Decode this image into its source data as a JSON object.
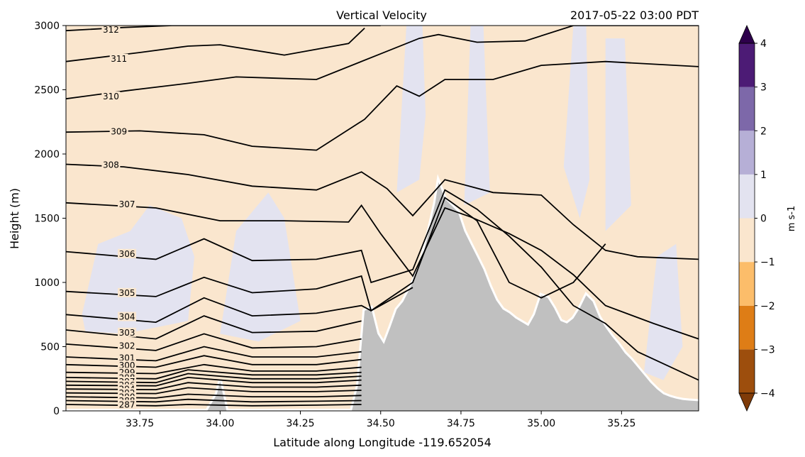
{
  "chart_data": {
    "type": "contour",
    "title_left": "Vertical Velocity",
    "title_right": "2017-05-22 03:00 PDT",
    "xlabel": "Latitude along Longitude -119.652054",
    "ylabel": "Height (m)",
    "xlim": [
      33.52,
      35.49
    ],
    "ylim": [
      0,
      3000
    ],
    "xticks": [
      33.75,
      34.0,
      34.25,
      34.5,
      34.75,
      35.0,
      35.25
    ],
    "xtick_labels": [
      "33.75",
      "34.00",
      "34.25",
      "34.50",
      "34.75",
      "35.00",
      "35.25"
    ],
    "yticks": [
      0,
      500,
      1000,
      1500,
      2000,
      2500,
      3000
    ],
    "ytick_labels": [
      "0",
      "500",
      "1000",
      "1500",
      "2000",
      "2500",
      "3000"
    ],
    "colorbar": {
      "label": "m s-1",
      "levels": [
        -4,
        -3,
        -2,
        -1,
        0,
        1,
        2,
        3,
        4
      ],
      "tick_labels": [
        "−4",
        "−3",
        "−2",
        "−1",
        "0",
        "1",
        "2",
        "3",
        "4"
      ],
      "colors": [
        "#9d4e0d",
        "#de7d16",
        "#fcbd6a",
        "#fae6ce",
        "#e3e3f0",
        "#b6afd6",
        "#7d68a9",
        "#4c1b75"
      ],
      "extend_low_color": "#7f3b08",
      "extend_high_color": "#2d004b"
    },
    "terrain": {
      "color": "#c0c0c0",
      "lat": [
        33.52,
        33.96,
        33.99,
        34.0,
        34.02,
        34.41,
        34.43,
        34.45,
        34.47,
        34.49,
        34.51,
        34.53,
        34.55,
        34.57,
        34.59,
        34.61,
        34.63,
        34.65,
        34.67,
        34.68,
        34.7,
        34.72,
        34.74,
        34.76,
        34.78,
        34.8,
        34.82,
        34.84,
        34.86,
        34.88,
        34.9,
        34.92,
        34.94,
        34.96,
        34.98,
        35.0,
        35.02,
        35.04,
        35.06,
        35.08,
        35.1,
        35.12,
        35.14,
        35.16,
        35.18,
        35.2,
        35.22,
        35.24,
        35.26,
        35.28,
        35.3,
        35.32,
        35.34,
        35.36,
        35.38,
        35.4,
        35.42,
        35.44,
        35.46,
        35.49
      ],
      "height": [
        0,
        0,
        130,
        230,
        0,
        0,
        200,
        780,
        800,
        600,
        520,
        650,
        790,
        850,
        950,
        1050,
        1200,
        1400,
        1620,
        1780,
        1650,
        1600,
        1550,
        1400,
        1300,
        1200,
        1100,
        970,
        860,
        790,
        760,
        720,
        690,
        660,
        750,
        900,
        880,
        800,
        700,
        680,
        720,
        800,
        900,
        850,
        730,
        650,
        580,
        520,
        450,
        400,
        340,
        280,
        220,
        170,
        130,
        110,
        95,
        85,
        80,
        75
      ]
    },
    "isentropes": {
      "units": "K",
      "color": "#000000",
      "labels_printed": [
        "312",
        "311",
        "310",
        "309",
        "308",
        "307",
        "306",
        "305",
        "304",
        "303",
        "302",
        "301",
        "300",
        "299",
        "298",
        "297",
        "296",
        "294",
        "292",
        "290",
        "288",
        "287"
      ],
      "lines": [
        {
          "theta": "312",
          "lat": [
            33.52,
            33.7,
            33.85,
            34.0,
            34.2,
            34.4,
            34.5
          ],
          "height": [
            2960,
            2985,
            3000,
            3000,
            3000,
            3000,
            3000
          ]
        },
        {
          "theta": "311",
          "lat": [
            33.52,
            33.75,
            33.9,
            34.0,
            34.2,
            34.4,
            34.45
          ],
          "height": [
            2720,
            2790,
            2840,
            2850,
            2770,
            2860,
            2980
          ]
        },
        {
          "theta": "310",
          "lat": [
            33.52,
            33.7,
            33.9,
            34.05,
            34.3,
            34.5,
            34.62,
            34.68,
            34.8,
            34.95,
            35.1,
            35.3,
            35.49
          ],
          "height": [
            2430,
            2490,
            2550,
            2600,
            2580,
            2780,
            2900,
            2930,
            2870,
            2880,
            3000,
            3000,
            3000
          ]
        },
        {
          "theta": "309",
          "lat": [
            33.52,
            33.75,
            33.95,
            34.1,
            34.3,
            34.45,
            34.55,
            34.62,
            34.7,
            34.85,
            35.0,
            35.2,
            35.49
          ],
          "height": [
            2170,
            2180,
            2150,
            2060,
            2030,
            2270,
            2530,
            2450,
            2580,
            2580,
            2690,
            2720,
            2680
          ]
        },
        {
          "theta": "308",
          "lat": [
            33.52,
            33.7,
            33.9,
            34.1,
            34.3,
            34.44,
            34.52,
            34.6,
            34.7,
            34.85,
            35.0,
            35.1,
            35.2,
            35.3,
            35.49
          ],
          "height": [
            1920,
            1900,
            1840,
            1750,
            1720,
            1860,
            1730,
            1520,
            1800,
            1700,
            1680,
            1450,
            1250,
            1200,
            1180
          ]
        },
        {
          "theta": "307",
          "lat": [
            33.52,
            33.8,
            34.0,
            34.2,
            34.4,
            34.44,
            34.5,
            34.6,
            34.7,
            34.78,
            34.9,
            35.0,
            35.1,
            35.2,
            35.35,
            35.49
          ],
          "height": [
            1620,
            1580,
            1480,
            1480,
            1470,
            1600,
            1380,
            1050,
            1580,
            1510,
            1380,
            1250,
            1060,
            820,
            680,
            560
          ]
        },
        {
          "theta": "306",
          "lat": [
            33.52,
            33.8,
            33.95,
            34.1,
            34.3,
            34.44,
            34.47,
            34.6,
            34.7,
            34.8,
            34.9,
            35.0,
            35.1,
            35.2,
            35.3,
            35.49
          ],
          "height": [
            1240,
            1180,
            1340,
            1170,
            1180,
            1250,
            1000,
            1100,
            1720,
            1570,
            1360,
            1120,
            820,
            680,
            460,
            240
          ]
        },
        {
          "theta": "305",
          "lat": [
            33.52,
            33.8,
            33.95,
            34.1,
            34.3,
            34.44,
            34.47,
            34.6,
            34.7,
            34.8,
            34.9,
            35.0,
            35.1,
            35.2
          ],
          "height": [
            930,
            890,
            1040,
            920,
            950,
            1050,
            780,
            1000,
            1660,
            1480,
            1000,
            880,
            1000,
            1300
          ]
        },
        {
          "theta": "304",
          "lat": [
            33.52,
            33.8,
            33.95,
            34.1,
            34.3,
            34.44,
            34.47,
            34.6
          ],
          "height": [
            750,
            690,
            880,
            740,
            760,
            820,
            780,
            960
          ]
        },
        {
          "theta": "303",
          "lat": [
            33.52,
            33.8,
            33.95,
            34.1,
            34.3,
            34.44
          ],
          "height": [
            630,
            560,
            740,
            610,
            620,
            700
          ]
        },
        {
          "theta": "302",
          "lat": [
            33.52,
            33.8,
            33.95,
            34.1,
            34.3,
            34.44
          ],
          "height": [
            520,
            470,
            600,
            490,
            500,
            560
          ]
        },
        {
          "theta": "301",
          "lat": [
            33.52,
            33.8,
            33.95,
            34.1,
            34.3,
            34.44
          ],
          "height": [
            420,
            390,
            500,
            420,
            420,
            460
          ]
        },
        {
          "theta": "300",
          "lat": [
            33.52,
            33.8,
            33.95,
            34.1,
            34.3,
            34.44
          ],
          "height": [
            360,
            340,
            430,
            360,
            360,
            400
          ]
        },
        {
          "theta": "299",
          "lat": [
            33.52,
            33.8,
            33.95,
            34.1,
            34.3,
            34.44
          ],
          "height": [
            300,
            290,
            360,
            310,
            310,
            340
          ]
        },
        {
          "theta": "298",
          "lat": [
            33.52,
            33.8,
            33.9,
            34.1,
            34.3,
            34.44
          ],
          "height": [
            260,
            250,
            320,
            280,
            280,
            300
          ]
        },
        {
          "theta": "297",
          "lat": [
            33.52,
            33.8,
            33.9,
            34.1,
            34.3,
            34.44
          ],
          "height": [
            230,
            220,
            290,
            250,
            250,
            270
          ]
        },
        {
          "theta": "296",
          "lat": [
            33.52,
            33.8,
            33.9,
            34.1,
            34.3,
            34.44
          ],
          "height": [
            200,
            195,
            260,
            220,
            220,
            240
          ]
        },
        {
          "theta": "294",
          "lat": [
            33.52,
            33.8,
            33.9,
            34.1,
            34.3,
            34.44
          ],
          "height": [
            170,
            165,
            220,
            185,
            185,
            200
          ]
        },
        {
          "theta": "292",
          "lat": [
            33.52,
            33.8,
            33.9,
            34.1,
            34.3,
            34.44
          ],
          "height": [
            140,
            135,
            180,
            150,
            150,
            160
          ]
        },
        {
          "theta": "290",
          "lat": [
            33.52,
            33.8,
            33.9,
            34.1,
            34.3,
            34.44
          ],
          "height": [
            110,
            100,
            130,
            110,
            110,
            120
          ]
        },
        {
          "theta": "288",
          "lat": [
            33.52,
            33.8,
            33.9,
            34.1,
            34.3,
            34.44
          ],
          "height": [
            80,
            70,
            90,
            70,
            75,
            80
          ]
        },
        {
          "theta": "287",
          "lat": [
            33.52,
            33.8,
            33.9,
            34.1,
            34.3,
            34.44
          ],
          "height": [
            50,
            40,
            50,
            40,
            45,
            50
          ]
        }
      ]
    },
    "w_fields": [
      {
        "value_range": "0 to 1",
        "color": "#e3e3f0",
        "polygon": [
          [
            33.57,
            750
          ],
          [
            33.62,
            1300
          ],
          [
            33.72,
            1400
          ],
          [
            33.78,
            1600
          ],
          [
            33.88,
            1500
          ],
          [
            33.92,
            1200
          ],
          [
            33.9,
            700
          ],
          [
            33.7,
            600
          ],
          [
            33.58,
            620
          ]
        ]
      },
      {
        "value_range": "0 to 1",
        "color": "#e3e3f0",
        "polygon": [
          [
            34.0,
            600
          ],
          [
            34.05,
            1400
          ],
          [
            34.15,
            1700
          ],
          [
            34.2,
            1500
          ],
          [
            34.25,
            700
          ],
          [
            34.12,
            540
          ]
        ]
      },
      {
        "value_range": "0 to 1",
        "color": "#e3e3f0",
        "polygon": [
          [
            34.55,
            1700
          ],
          [
            34.58,
            3000
          ],
          [
            34.63,
            3000
          ],
          [
            34.64,
            2300
          ],
          [
            34.62,
            1800
          ]
        ]
      },
      {
        "value_range": "0 to 1",
        "color": "#e3e3f0",
        "polygon": [
          [
            34.76,
            1600
          ],
          [
            34.78,
            3000
          ],
          [
            34.82,
            3000
          ],
          [
            34.84,
            1700
          ]
        ]
      },
      {
        "value_range": "0 to 1",
        "color": "#e3e3f0",
        "polygon": [
          [
            35.07,
            1900
          ],
          [
            35.1,
            3000
          ],
          [
            35.14,
            3000
          ],
          [
            35.15,
            1800
          ],
          [
            35.12,
            1500
          ]
        ]
      },
      {
        "value_range": "0 to 1",
        "color": "#e3e3f0",
        "polygon": [
          [
            35.2,
            1400
          ],
          [
            35.2,
            2900
          ],
          [
            35.26,
            2900
          ],
          [
            35.28,
            1600
          ]
        ]
      },
      {
        "value_range": "0 to 1",
        "color": "#e3e3f0",
        "polygon": [
          [
            35.32,
            300
          ],
          [
            35.36,
            1200
          ],
          [
            35.42,
            1300
          ],
          [
            35.44,
            500
          ],
          [
            35.38,
            240
          ]
        ]
      }
    ]
  }
}
